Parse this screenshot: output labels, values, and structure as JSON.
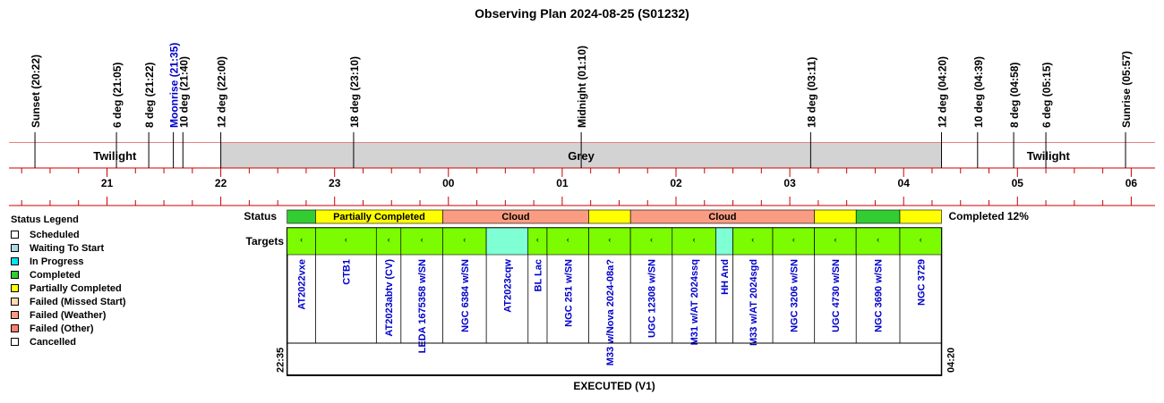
{
  "chart_data": {
    "type": "timeline",
    "title": "Observing Plan 2024-08-25 (S01232)",
    "time_axis": {
      "ticks": [
        {
          "label": "21",
          "hour": 21
        },
        {
          "label": "22",
          "hour": 22
        },
        {
          "label": "23",
          "hour": 23
        },
        {
          "label": "00",
          "hour": 24
        },
        {
          "label": "01",
          "hour": 25
        },
        {
          "label": "02",
          "hour": 26
        },
        {
          "label": "03",
          "hour": 27
        },
        {
          "label": "04",
          "hour": 28
        },
        {
          "label": "05",
          "hour": 29
        },
        {
          "label": "06",
          "hour": 30
        }
      ]
    },
    "events": [
      {
        "label": "Sunset (20:22)",
        "time": "20:22",
        "hour": 20.367,
        "color": "#000000"
      },
      {
        "label": "6 deg (21:05)",
        "time": "21:05",
        "hour": 21.083,
        "color": "#000000"
      },
      {
        "label": "8 deg (21:22)",
        "time": "21:22",
        "hour": 21.367,
        "color": "#000000"
      },
      {
        "label": "Moonrise (21:35)",
        "time": "21:35",
        "hour": 21.583,
        "color": "#0000cc"
      },
      {
        "label": "10 deg (21:40)",
        "time": "21:40",
        "hour": 21.667,
        "color": "#000000"
      },
      {
        "label": "12 deg (22:00)",
        "time": "22:00",
        "hour": 22.0,
        "color": "#000000"
      },
      {
        "label": "18 deg (23:10)",
        "time": "23:10",
        "hour": 23.167,
        "color": "#000000"
      },
      {
        "label": "Midnight (01:10)",
        "time": "01:10",
        "hour": 25.167,
        "color": "#000000"
      },
      {
        "label": "18 deg (03:11)",
        "time": "03:11",
        "hour": 27.183,
        "color": "#000000"
      },
      {
        "label": "12 deg (04:20)",
        "time": "04:20",
        "hour": 28.333,
        "color": "#000000"
      },
      {
        "label": "10 deg (04:39)",
        "time": "04:39",
        "hour": 28.65,
        "color": "#000000"
      },
      {
        "label": "8 deg (04:58)",
        "time": "04:58",
        "hour": 28.967,
        "color": "#000000"
      },
      {
        "label": "6 deg (05:15)",
        "time": "05:15",
        "hour": 29.25,
        "color": "#000000"
      },
      {
        "label": "Sunrise (05:57)",
        "time": "05:57",
        "hour": 29.95,
        "color": "#000000"
      }
    ],
    "sky_bands": [
      {
        "label": "Twilight",
        "start": 20.0,
        "end": 22.0,
        "color": "#ffffff"
      },
      {
        "label": "Grey",
        "start": 22.0,
        "end": 28.333,
        "color": "#d3d3d3"
      },
      {
        "label": "Twilight",
        "start": 28.333,
        "end": 30.5,
        "color": "#ffffff"
      }
    ],
    "status_row_label": "Status",
    "status_segments": [
      {
        "label": "",
        "start": 22.583,
        "end": 22.833,
        "color": "#33cc33"
      },
      {
        "label": "Partially Completed",
        "start": 22.833,
        "end": 23.95,
        "color": "#ffff00"
      },
      {
        "label": "Cloud",
        "start": 23.95,
        "end": 25.233,
        "color": "#fa9c82"
      },
      {
        "label": "",
        "start": 25.233,
        "end": 25.6,
        "color": "#ffff00"
      },
      {
        "label": "Cloud",
        "start": 25.6,
        "end": 27.217,
        "color": "#fa9c82"
      },
      {
        "label": "",
        "start": 27.217,
        "end": 27.583,
        "color": "#ffff00"
      },
      {
        "label": "",
        "start": 27.583,
        "end": 27.967,
        "color": "#33cc33"
      },
      {
        "label": "",
        "start": 27.967,
        "end": 28.333,
        "color": "#ffff00"
      }
    ],
    "completion_text": "Completed 12%",
    "targets_row_label": "Targets",
    "targets": [
      {
        "name": "AT2022vxe",
        "start": 22.583,
        "end": 22.833,
        "color": "#7cfc00"
      },
      {
        "name": "CTB1",
        "start": 22.833,
        "end": 23.367,
        "color": "#7cfc00"
      },
      {
        "name": "AT2023abtv (CV)",
        "start": 23.367,
        "end": 23.583,
        "color": "#7cfc00"
      },
      {
        "name": "LEDA 1675358 w/SN",
        "start": 23.583,
        "end": 23.95,
        "color": "#7cfc00"
      },
      {
        "name": "NGC 6384 w/SN",
        "start": 23.95,
        "end": 24.333,
        "color": "#7cfc00"
      },
      {
        "name": "AT2023cqw",
        "start": 24.333,
        "end": 24.7,
        "color": "#7fffd4"
      },
      {
        "name": "BL Lac",
        "start": 24.7,
        "end": 24.867,
        "color": "#7cfc00"
      },
      {
        "name": "NGC 251 w/SN",
        "start": 24.867,
        "end": 25.233,
        "color": "#7cfc00"
      },
      {
        "name": "M33 w/Nova 2024-08a?",
        "start": 25.233,
        "end": 25.6,
        "color": "#7cfc00"
      },
      {
        "name": "UGC 12308 w/SN",
        "start": 25.6,
        "end": 25.967,
        "color": "#7cfc00"
      },
      {
        "name": "M31 w/AT 2024ssq",
        "start": 25.967,
        "end": 26.35,
        "color": "#7cfc00"
      },
      {
        "name": "HH And",
        "start": 26.35,
        "end": 26.5,
        "color": "#7fffd4"
      },
      {
        "name": "M33 w/AT 2024sgd",
        "start": 26.5,
        "end": 26.85,
        "color": "#7cfc00"
      },
      {
        "name": "NGC 3206 w/SN",
        "start": 26.85,
        "end": 27.217,
        "color": "#7cfc00"
      },
      {
        "name": "UGC 4730 w/SN",
        "start": 27.217,
        "end": 27.583,
        "color": "#7cfc00"
      },
      {
        "name": "NGC 3690 w/SN",
        "start": 27.583,
        "end": 27.967,
        "color": "#7cfc00"
      },
      {
        "name": "NGC 3729",
        "start": 27.967,
        "end": 28.333,
        "color": "#7cfc00"
      }
    ],
    "plan_start_label": "22:35",
    "plan_end_label": "04:20",
    "plan_footer": "EXECUTED (V1)"
  },
  "legend": {
    "title": "Status Legend",
    "items": [
      {
        "label": "Scheduled",
        "color": "#ffffff"
      },
      {
        "label": "Waiting To Start",
        "color": "#add8e6"
      },
      {
        "label": "In Progress",
        "color": "#00e5ee"
      },
      {
        "label": "Completed",
        "color": "#33cc33"
      },
      {
        "label": "Partially Completed",
        "color": "#ffff00"
      },
      {
        "label": "Failed (Missed Start)",
        "color": "#ffdab9"
      },
      {
        "label": "Failed (Weather)",
        "color": "#fa9c82"
      },
      {
        "label": "Failed (Other)",
        "color": "#fa8072"
      },
      {
        "label": "Cancelled",
        "color": "#ffffff"
      }
    ]
  },
  "colors": {
    "axis_line": "#cc0000",
    "target_text": "#0000cc"
  }
}
